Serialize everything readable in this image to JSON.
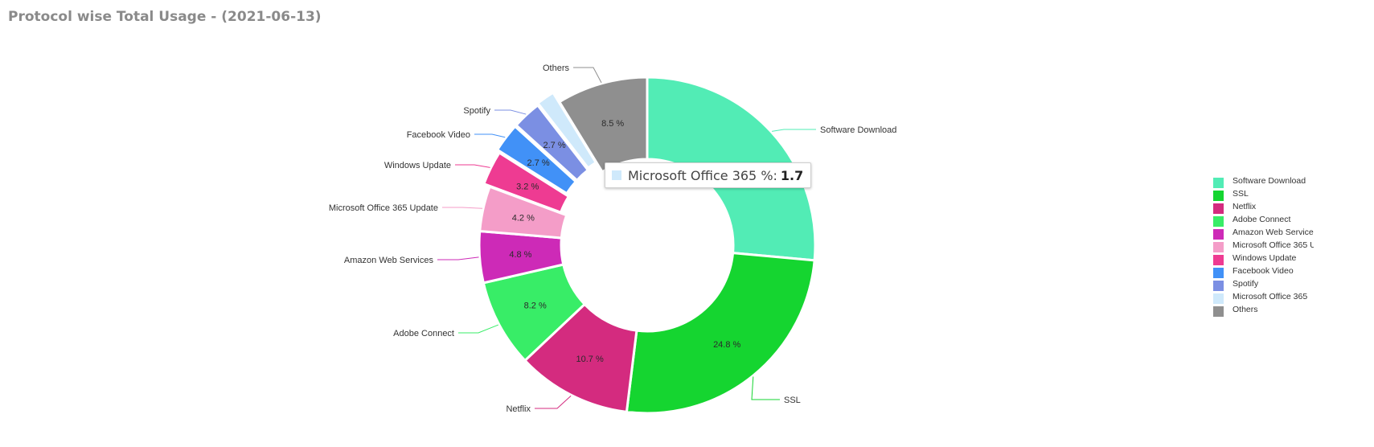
{
  "title": "Protocol wise Total Usage - (2021-06-13)",
  "tooltip": {
    "label": "Microsoft Office 365 %:",
    "value": "1.7",
    "color": "#cfe9fb"
  },
  "chart_data": {
    "type": "pie",
    "donut": true,
    "start_angle_deg": 0,
    "slices": [
      {
        "name": "Software Download",
        "value": 25.7,
        "pct_label": "",
        "color": "#52ecb5",
        "outer_label": "Software Download"
      },
      {
        "name": "SSL",
        "value": 24.8,
        "pct_label": "24.8 %",
        "color": "#15d530",
        "outer_label": "SSL"
      },
      {
        "name": "Netflix",
        "value": 10.7,
        "pct_label": "10.7 %",
        "color": "#d42b7f",
        "outer_label": "Netflix"
      },
      {
        "name": "Adobe Connect",
        "value": 8.2,
        "pct_label": "8.2 %",
        "color": "#38ed67",
        "outer_label": "Adobe Connect"
      },
      {
        "name": "Amazon Web Services",
        "value": 4.8,
        "pct_label": "4.8 %",
        "color": "#cd2ab7",
        "outer_label": "Amazon Web Services"
      },
      {
        "name": "Microsoft Office 365 Update",
        "value": 4.2,
        "pct_label": "4.2 %",
        "color": "#f49dc8",
        "outer_label": "Microsoft Office 365 Update"
      },
      {
        "name": "Windows Update",
        "value": 3.2,
        "pct_label": "3.2 %",
        "color": "#ee3b92",
        "outer_label": "Windows Update"
      },
      {
        "name": "Facebook Video",
        "value": 2.7,
        "pct_label": "2.7 %",
        "color": "#4191f7",
        "outer_label": "Facebook Video"
      },
      {
        "name": "Spotify",
        "value": 2.7,
        "pct_label": "2.7 %",
        "color": "#7b8fe3",
        "outer_label": "Spotify"
      },
      {
        "name": "Microsoft Office 365",
        "value": 1.7,
        "pct_label": "",
        "color": "#cfe9fb",
        "outer_label": ""
      },
      {
        "name": "Others",
        "value": 8.5,
        "pct_label": "8.5 %",
        "color": "#8f8f8f",
        "outer_label": "Others"
      }
    ],
    "legend": [
      "Software Download",
      "SSL",
      "Netflix",
      "Adobe Connect",
      "Amazon Web Services",
      "Microsoft Office 365 U",
      "Windows Update",
      "Facebook Video",
      "Spotify",
      "Microsoft Office 365",
      "Others"
    ],
    "legend_position": "right"
  }
}
